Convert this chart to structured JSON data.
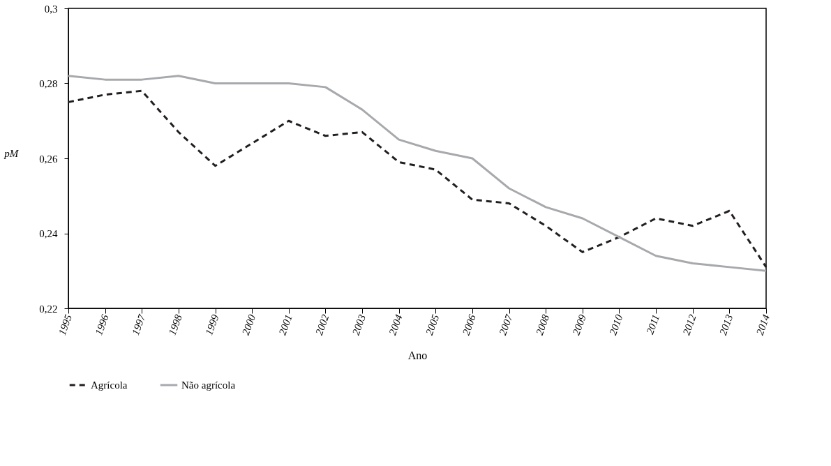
{
  "chart_data": {
    "type": "line",
    "xlabel": "Ano",
    "ylabel": "pM",
    "categories": [
      "1995",
      "1996",
      "1997",
      "1998",
      "1999",
      "2000",
      "2001",
      "2002",
      "2003",
      "2004",
      "2005",
      "2006",
      "2007",
      "2008",
      "2009",
      "2010",
      "2011",
      "2012",
      "2013",
      "2014"
    ],
    "series": [
      {
        "name": "Agrícola",
        "color": "#231f20",
        "line_style": "dashed",
        "values": [
          0.275,
          0.277,
          0.278,
          0.267,
          0.258,
          0.264,
          0.27,
          0.266,
          0.267,
          0.259,
          0.257,
          0.249,
          0.248,
          0.242,
          0.235,
          0.239,
          0.244,
          0.242,
          0.246,
          0.231
        ]
      },
      {
        "name": "Não agrícola",
        "color": "#a7a9ac",
        "line_style": "solid",
        "values": [
          0.282,
          0.281,
          0.281,
          0.282,
          0.28,
          0.28,
          0.28,
          0.279,
          0.273,
          0.265,
          0.262,
          0.26,
          0.252,
          0.247,
          0.244,
          0.239,
          0.234,
          0.232,
          0.231,
          0.23
        ]
      }
    ],
    "ylim": [
      0.22,
      0.3
    ],
    "yticks": [
      {
        "value": 0.22,
        "label": "0,22"
      },
      {
        "value": 0.24,
        "label": "0,24"
      },
      {
        "value": 0.26,
        "label": "0,26"
      },
      {
        "value": 0.28,
        "label": "0,28"
      },
      {
        "value": 0.3,
        "label": "0,3"
      }
    ],
    "grid": false,
    "legend": "bottom",
    "marker": "none"
  }
}
